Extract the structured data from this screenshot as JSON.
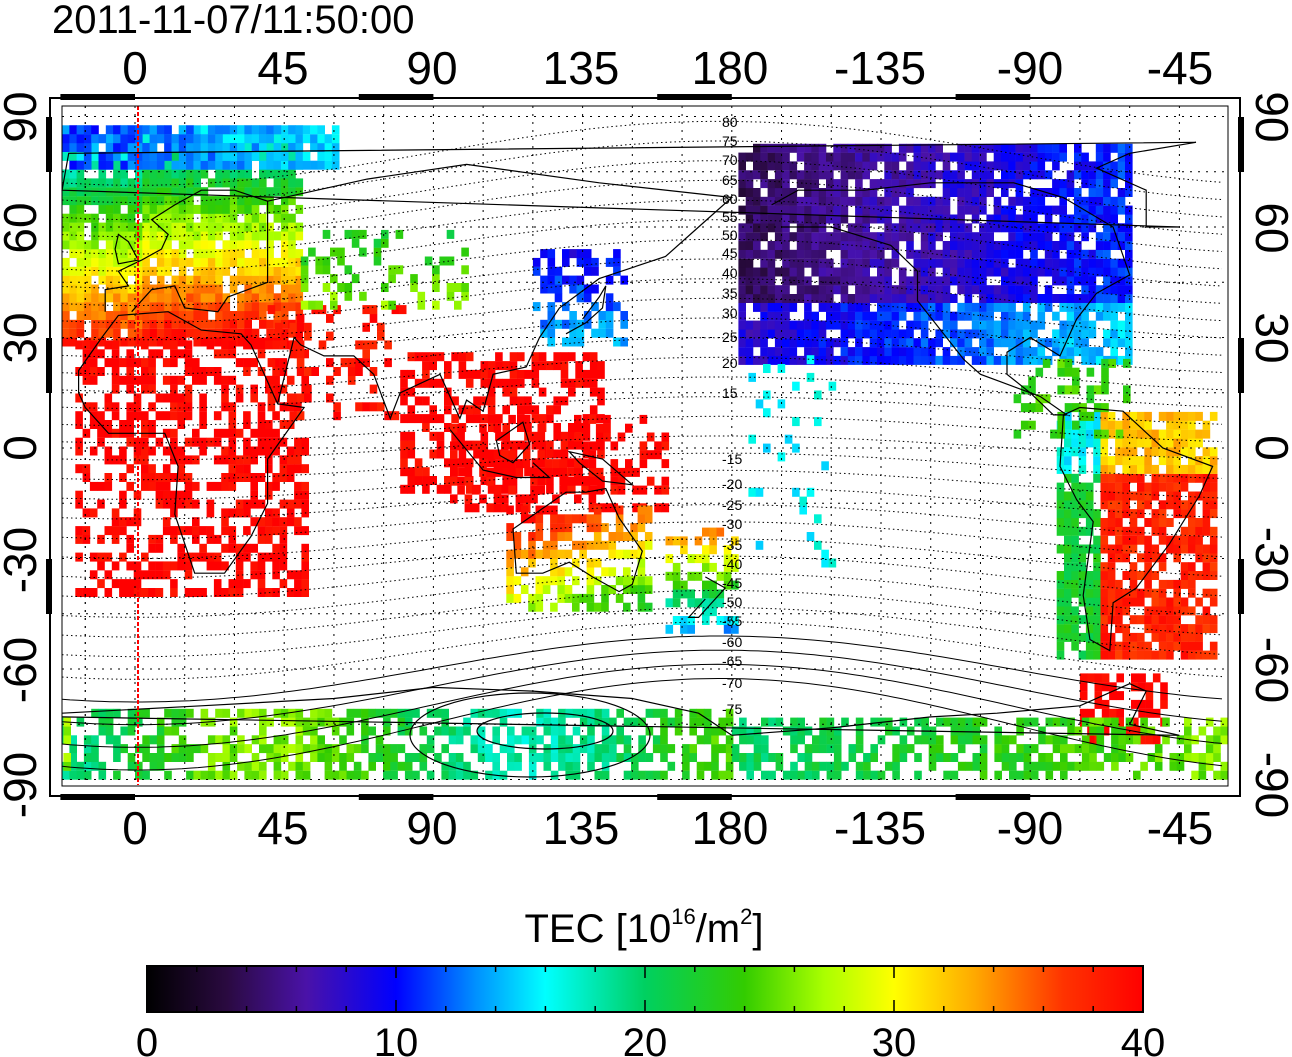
{
  "title": "2011-11-07/11:50:00",
  "map": {
    "top_tick_labels": [
      "0",
      "45",
      "90",
      "135",
      "180",
      "-135",
      "-90",
      "-45"
    ],
    "bottom_tick_labels": [
      "0",
      "45",
      "90",
      "135",
      "180",
      "-135",
      "-90",
      "-45"
    ],
    "left_tick_labels": [
      "90",
      "60",
      "30",
      "0",
      "-30",
      "-60",
      "-90"
    ],
    "right_tick_labels": [
      "90",
      "60",
      "30",
      "0",
      "-30",
      "-60",
      "-90"
    ],
    "contour_labels": [
      "80",
      "75",
      "70",
      "65",
      "60",
      "55",
      "50",
      "45",
      "40",
      "35",
      "30",
      "25",
      "20",
      "15",
      "-15",
      "-20",
      "-25",
      "-30",
      "-35",
      "-40",
      "-45",
      "-50",
      "-55",
      "-60",
      "-65",
      "-70",
      "-75"
    ]
  },
  "colorbar": {
    "label_prefix": "TEC  [10",
    "label_exp1": "16",
    "label_mid": "/m",
    "label_exp2": "2",
    "label_suffix": "]",
    "tick_labels": [
      "0",
      "10",
      "20",
      "30",
      "40"
    ],
    "min": 0,
    "max": 40,
    "colors": [
      "#000000",
      "#3a0a5e",
      "#4a12a8",
      "#0000ff",
      "#0090ff",
      "#00ffff",
      "#00e070",
      "#00cc33",
      "#99ff00",
      "#ffff00",
      "#ffaa00",
      "#ff5500",
      "#ff1a00",
      "#ff0000"
    ]
  },
  "legend_colors": {
    "frame": "#000000",
    "terminator": "#ff0000"
  }
}
